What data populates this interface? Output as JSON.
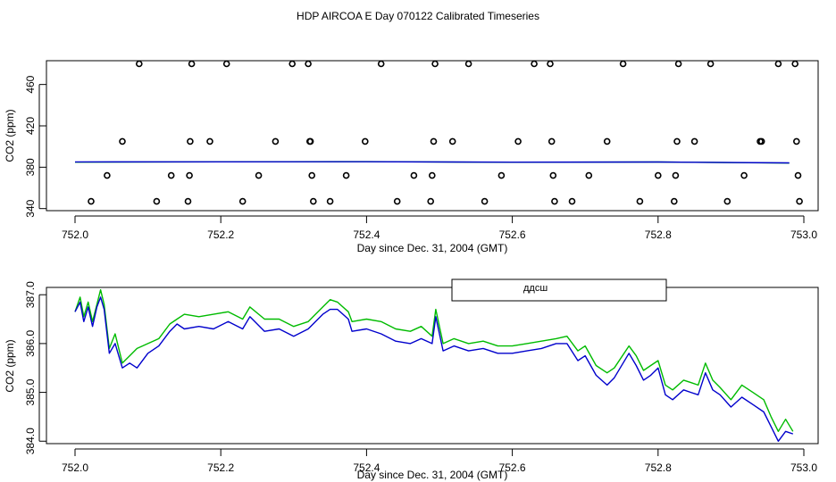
{
  "title": "HDP AIRCOA E  Day 070122  Calibrated Timeseries",
  "colors": {
    "series_a": "#00bb00",
    "series_b": "#0000cc",
    "markers": "#000000"
  },
  "chart_data": [
    {
      "type": "scatter",
      "xlabel": "Day since Dec. 31, 2004 (GMT)",
      "ylabel": "CO2 (ppm)",
      "xlim": [
        752.0,
        753.0
      ],
      "ylim": [
        338,
        483
      ],
      "x_ticks": [
        "752.0",
        "752.2",
        "752.4",
        "752.6",
        "752.8",
        "753.0"
      ],
      "y_ticks": [
        "340",
        "380",
        "420",
        "460"
      ],
      "markers": [
        [
          752.022,
          347
        ],
        [
          752.044,
          372
        ],
        [
          752.065,
          405
        ],
        [
          752.088,
          480
        ],
        [
          752.112,
          347
        ],
        [
          752.132,
          372
        ],
        [
          752.155,
          347
        ],
        [
          752.157,
          372
        ],
        [
          752.158,
          405
        ],
        [
          752.16,
          480
        ],
        [
          752.185,
          405
        ],
        [
          752.208,
          480
        ],
        [
          752.23,
          347
        ],
        [
          752.252,
          372
        ],
        [
          752.275,
          405
        ],
        [
          752.298,
          480
        ],
        [
          752.32,
          480
        ],
        [
          752.322,
          405
        ],
        [
          752.323,
          405
        ],
        [
          752.325,
          372
        ],
        [
          752.327,
          347
        ],
        [
          752.35,
          347
        ],
        [
          752.372,
          372
        ],
        [
          752.398,
          405
        ],
        [
          752.42,
          480
        ],
        [
          752.442,
          347
        ],
        [
          752.465,
          372
        ],
        [
          752.488,
          347
        ],
        [
          752.49,
          372
        ],
        [
          752.492,
          405
        ],
        [
          752.494,
          480
        ],
        [
          752.518,
          405
        ],
        [
          752.54,
          480
        ],
        [
          752.562,
          347
        ],
        [
          752.585,
          372
        ],
        [
          752.608,
          405
        ],
        [
          752.63,
          480
        ],
        [
          752.652,
          480
        ],
        [
          752.654,
          405
        ],
        [
          752.656,
          372
        ],
        [
          752.658,
          347
        ],
        [
          752.682,
          347
        ],
        [
          752.705,
          372
        ],
        [
          752.73,
          405
        ],
        [
          752.752,
          480
        ],
        [
          752.775,
          347
        ],
        [
          752.8,
          372
        ],
        [
          752.822,
          347
        ],
        [
          752.824,
          372
        ],
        [
          752.826,
          405
        ],
        [
          752.828,
          480
        ],
        [
          752.85,
          405
        ],
        [
          752.872,
          480
        ],
        [
          752.895,
          347
        ],
        [
          752.918,
          372
        ],
        [
          752.94,
          405
        ],
        [
          752.942,
          405
        ],
        [
          752.965,
          480
        ],
        [
          752.988,
          480
        ],
        [
          752.99,
          405
        ],
        [
          752.992,
          372
        ],
        [
          752.994,
          347
        ]
      ],
      "lines": [
        {
          "color": "#00bb00",
          "points": [
            [
              752.0,
              384.9
            ],
            [
              752.2,
              385.2
            ],
            [
              752.4,
              385.4
            ],
            [
              752.6,
              384.8
            ],
            [
              752.8,
              385.0
            ],
            [
              752.98,
              384.0
            ]
          ]
        },
        {
          "color": "#0000cc",
          "points": [
            [
              752.0,
              385.1
            ],
            [
              752.2,
              385.2
            ],
            [
              752.4,
              385.3
            ],
            [
              752.6,
              384.9
            ],
            [
              752.8,
              385.0
            ],
            [
              752.98,
              384.2
            ]
          ]
        }
      ]
    },
    {
      "type": "line",
      "xlabel": "Day since Dec. 31, 2004 (GMT)",
      "ylabel": "CO2 (ppm)",
      "xlim": [
        752.0,
        753.0
      ],
      "ylim": [
        383.95,
        387.15
      ],
      "x_ticks": [
        "752.0",
        "752.2",
        "752.4",
        "752.6",
        "752.8",
        "753.0"
      ],
      "y_ticks": [
        "384.0",
        "385.0",
        "386.0",
        "387.0"
      ],
      "legend": {
        "placement": "top-center",
        "partial_text": "ддсш"
      },
      "series": [
        {
          "color": "#00bb00",
          "points": [
            [
              752.0,
              386.65
            ],
            [
              752.007,
              386.95
            ],
            [
              752.012,
              386.55
            ],
            [
              752.018,
              386.85
            ],
            [
              752.024,
              386.45
            ],
            [
              752.03,
              386.8
            ],
            [
              752.035,
              387.1
            ],
            [
              752.04,
              386.8
            ],
            [
              752.047,
              385.9
            ],
            [
              752.055,
              386.2
            ],
            [
              752.065,
              385.6
            ],
            [
              752.075,
              385.75
            ],
            [
              752.085,
              385.9
            ],
            [
              752.1,
              386.0
            ],
            [
              752.115,
              386.1
            ],
            [
              752.13,
              386.4
            ],
            [
              752.14,
              386.5
            ],
            [
              752.15,
              386.6
            ],
            [
              752.17,
              386.55
            ],
            [
              752.19,
              386.6
            ],
            [
              752.21,
              386.65
            ],
            [
              752.23,
              386.5
            ],
            [
              752.24,
              386.75
            ],
            [
              752.26,
              386.5
            ],
            [
              752.28,
              386.5
            ],
            [
              752.3,
              386.35
            ],
            [
              752.32,
              386.45
            ],
            [
              752.34,
              386.75
            ],
            [
              752.35,
              386.9
            ],
            [
              752.36,
              386.85
            ],
            [
              752.375,
              386.65
            ],
            [
              752.38,
              386.45
            ],
            [
              752.4,
              386.5
            ],
            [
              752.42,
              386.45
            ],
            [
              752.44,
              386.3
            ],
            [
              752.46,
              386.25
            ],
            [
              752.475,
              386.35
            ],
            [
              752.49,
              386.15
            ],
            [
              752.495,
              386.7
            ],
            [
              752.505,
              386.0
            ],
            [
              752.52,
              386.1
            ],
            [
              752.54,
              386.0
            ],
            [
              752.56,
              386.05
            ],
            [
              752.58,
              385.95
            ],
            [
              752.6,
              385.95
            ],
            [
              752.62,
              386.0
            ],
            [
              752.64,
              386.05
            ],
            [
              752.66,
              386.1
            ],
            [
              752.675,
              386.15
            ],
            [
              752.69,
              385.85
            ],
            [
              752.7,
              385.95
            ],
            [
              752.715,
              385.55
            ],
            [
              752.73,
              385.4
            ],
            [
              752.74,
              385.5
            ],
            [
              752.76,
              385.95
            ],
            [
              752.77,
              385.75
            ],
            [
              752.78,
              385.45
            ],
            [
              752.79,
              385.55
            ],
            [
              752.8,
              385.65
            ],
            [
              752.81,
              385.15
            ],
            [
              752.82,
              385.05
            ],
            [
              752.835,
              385.25
            ],
            [
              752.845,
              385.2
            ],
            [
              752.855,
              385.15
            ],
            [
              752.865,
              385.6
            ],
            [
              752.875,
              385.25
            ],
            [
              752.885,
              385.1
            ],
            [
              752.9,
              384.85
            ],
            [
              752.915,
              385.15
            ],
            [
              752.93,
              385.0
            ],
            [
              752.945,
              384.85
            ],
            [
              752.955,
              384.5
            ],
            [
              752.965,
              384.2
            ],
            [
              752.975,
              384.45
            ],
            [
              752.985,
              384.2
            ]
          ]
        },
        {
          "color": "#0000cc",
          "points": [
            [
              752.0,
              386.65
            ],
            [
              752.007,
              386.85
            ],
            [
              752.012,
              386.45
            ],
            [
              752.018,
              386.75
            ],
            [
              752.024,
              386.35
            ],
            [
              752.03,
              386.75
            ],
            [
              752.035,
              386.95
            ],
            [
              752.04,
              386.7
            ],
            [
              752.047,
              385.8
            ],
            [
              752.055,
              386.0
            ],
            [
              752.065,
              385.5
            ],
            [
              752.075,
              385.6
            ],
            [
              752.085,
              385.5
            ],
            [
              752.1,
              385.8
            ],
            [
              752.115,
              385.95
            ],
            [
              752.13,
              386.25
            ],
            [
              752.14,
              386.4
            ],
            [
              752.15,
              386.3
            ],
            [
              752.17,
              386.35
            ],
            [
              752.19,
              386.3
            ],
            [
              752.21,
              386.45
            ],
            [
              752.23,
              386.3
            ],
            [
              752.24,
              386.55
            ],
            [
              752.26,
              386.25
            ],
            [
              752.28,
              386.3
            ],
            [
              752.3,
              386.15
            ],
            [
              752.32,
              386.3
            ],
            [
              752.34,
              386.6
            ],
            [
              752.35,
              386.7
            ],
            [
              752.36,
              386.7
            ],
            [
              752.375,
              386.5
            ],
            [
              752.38,
              386.25
            ],
            [
              752.4,
              386.3
            ],
            [
              752.42,
              386.2
            ],
            [
              752.44,
              386.05
            ],
            [
              752.46,
              386.0
            ],
            [
              752.475,
              386.1
            ],
            [
              752.49,
              386.0
            ],
            [
              752.495,
              386.55
            ],
            [
              752.505,
              385.85
            ],
            [
              752.52,
              385.95
            ],
            [
              752.54,
              385.85
            ],
            [
              752.56,
              385.9
            ],
            [
              752.58,
              385.8
            ],
            [
              752.6,
              385.8
            ],
            [
              752.62,
              385.85
            ],
            [
              752.64,
              385.9
            ],
            [
              752.66,
              386.0
            ],
            [
              752.675,
              386.0
            ],
            [
              752.69,
              385.65
            ],
            [
              752.7,
              385.75
            ],
            [
              752.715,
              385.35
            ],
            [
              752.73,
              385.15
            ],
            [
              752.74,
              385.3
            ],
            [
              752.76,
              385.8
            ],
            [
              752.77,
              385.55
            ],
            [
              752.78,
              385.25
            ],
            [
              752.79,
              385.35
            ],
            [
              752.8,
              385.5
            ],
            [
              752.81,
              384.95
            ],
            [
              752.82,
              384.85
            ],
            [
              752.835,
              385.05
            ],
            [
              752.845,
              385.0
            ],
            [
              752.855,
              384.95
            ],
            [
              752.865,
              385.4
            ],
            [
              752.875,
              385.05
            ],
            [
              752.885,
              384.95
            ],
            [
              752.9,
              384.7
            ],
            [
              752.915,
              384.9
            ],
            [
              752.93,
              384.75
            ],
            [
              752.945,
              384.6
            ],
            [
              752.955,
              384.3
            ],
            [
              752.965,
              384.0
            ],
            [
              752.975,
              384.2
            ],
            [
              752.985,
              384.15
            ]
          ]
        }
      ]
    }
  ]
}
